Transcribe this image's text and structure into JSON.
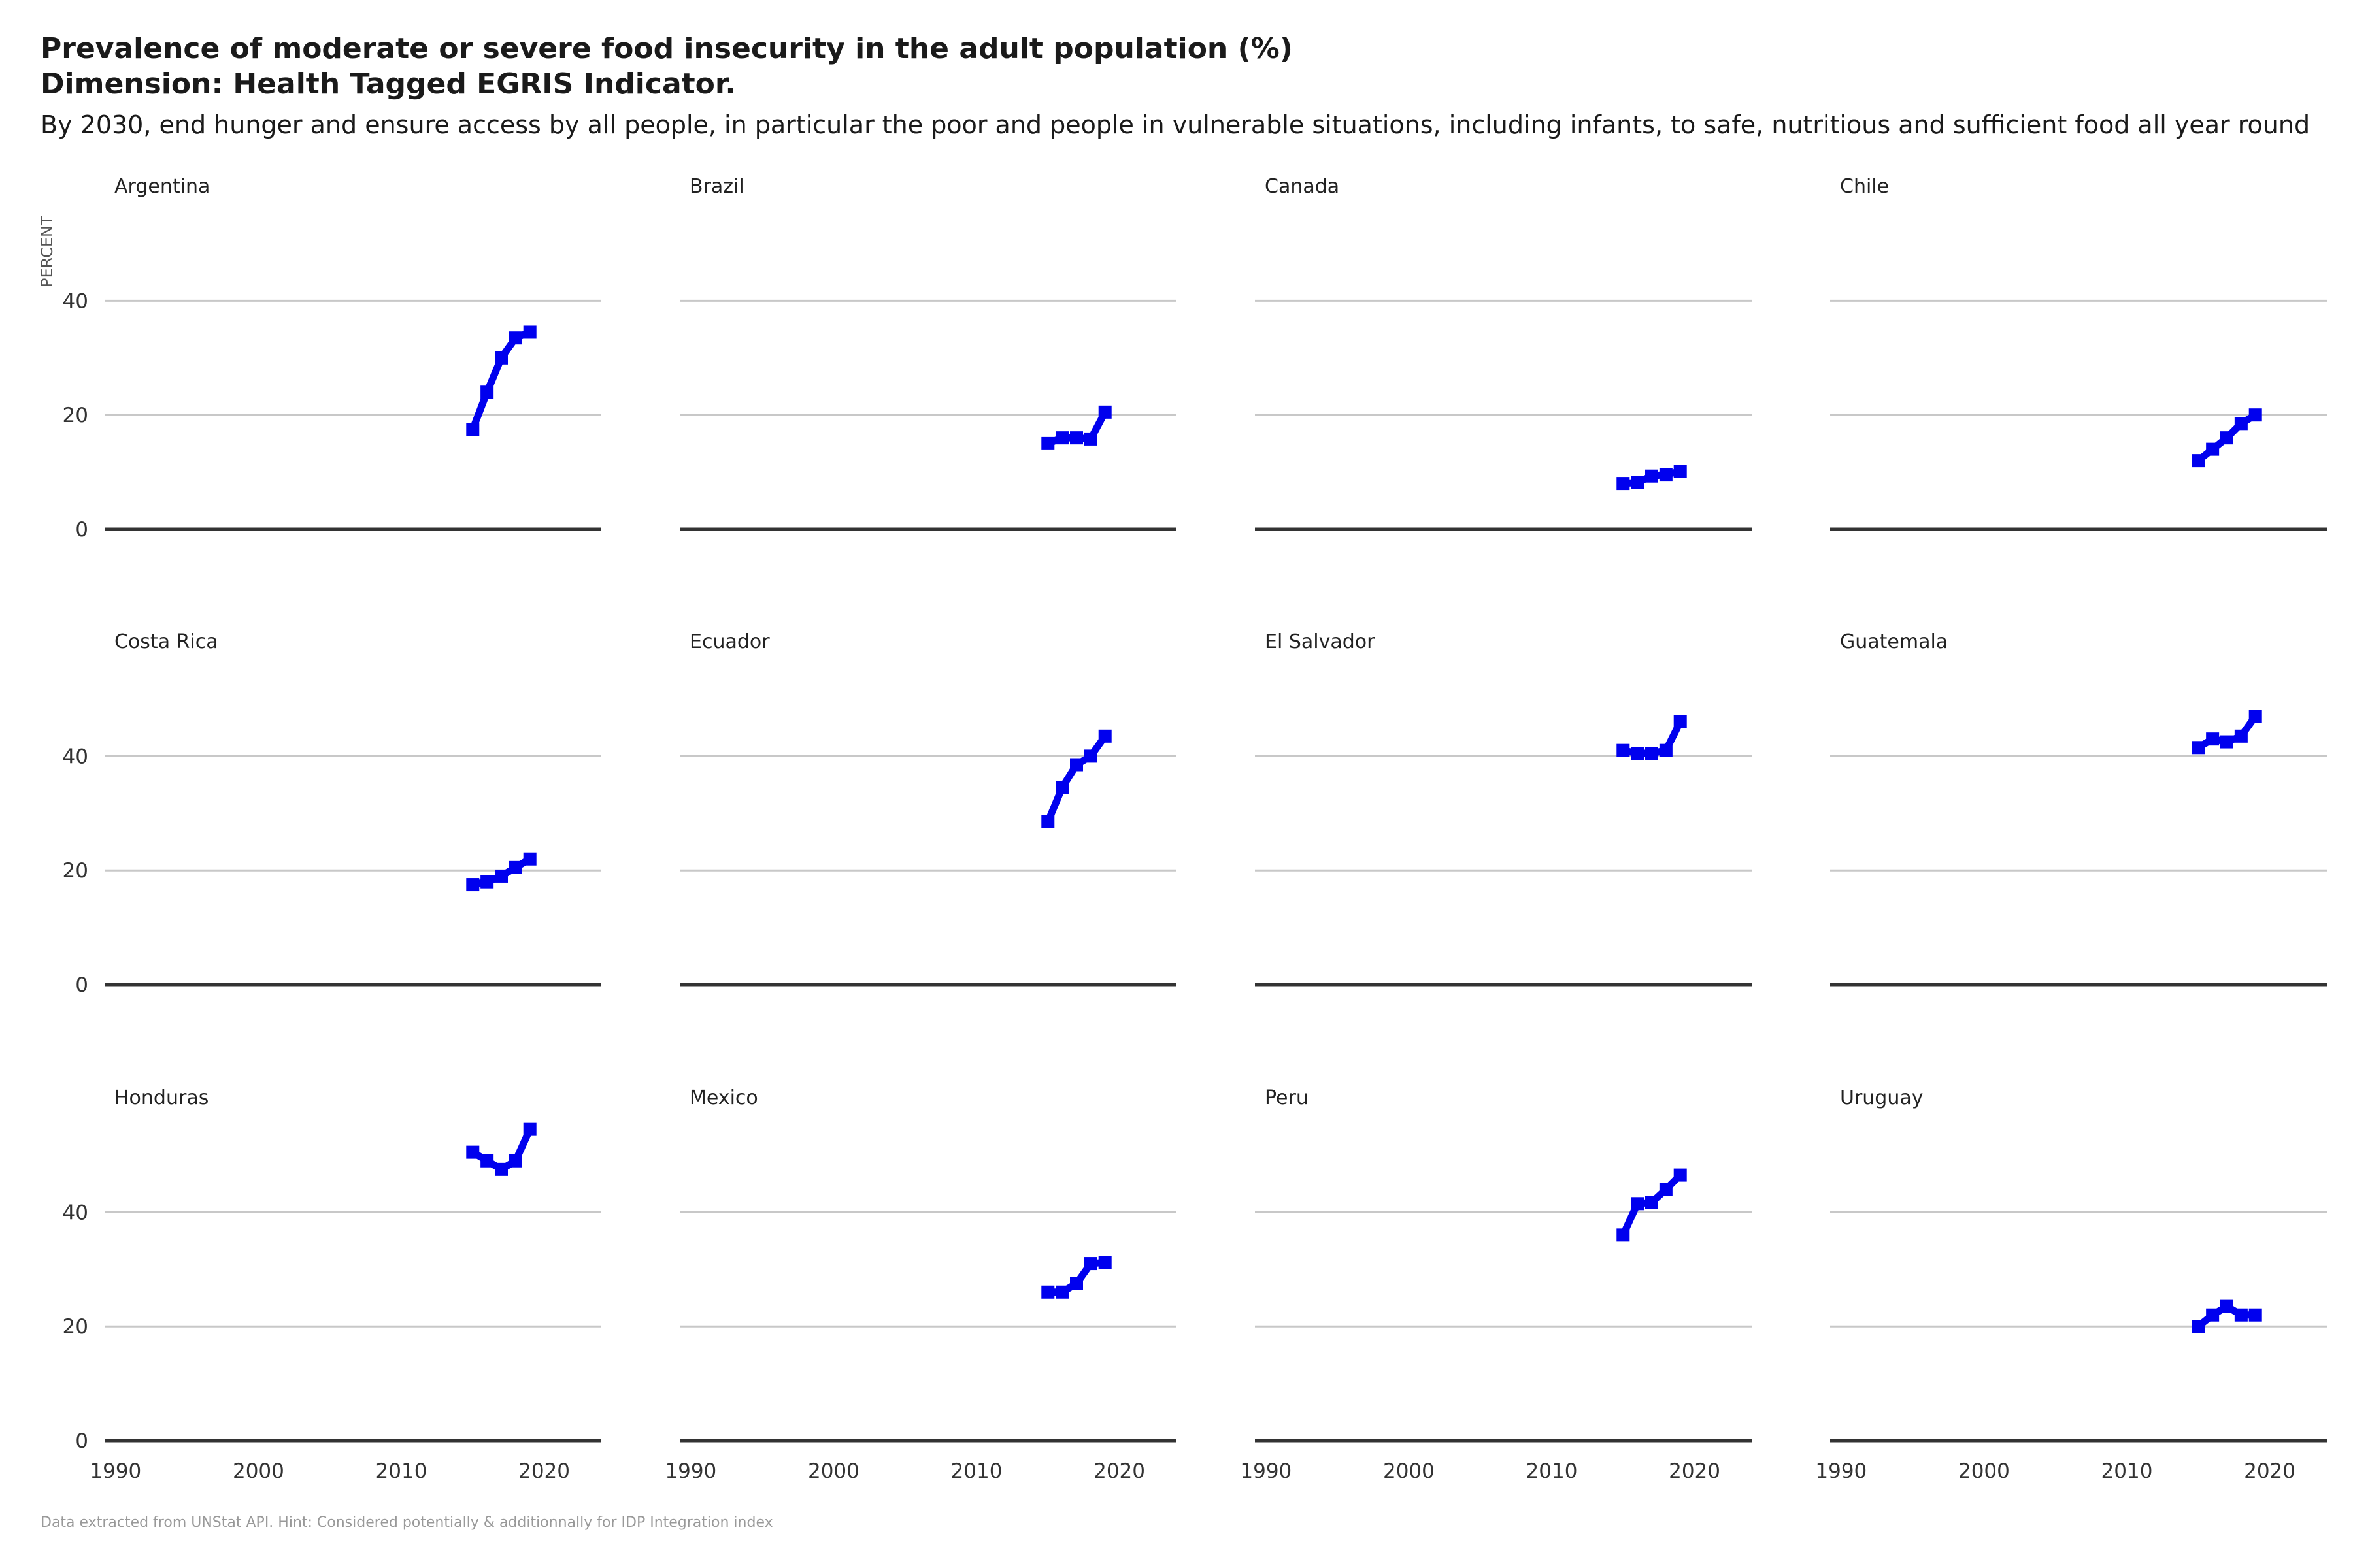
{
  "title_line1": "Prevalence of moderate or severe food insecurity in the adult population (%)",
  "title_line2": "Dimension: Health Tagged EGRIS Indicator.",
  "subtitle": "By 2030, end hunger and ensure access by all people, in particular the poor and people in vulnerable situations, including infants, to safe, nutritious and sufficient food all year round",
  "caption": "Data extracted from UNStat API. Hint: Considered potentially & additionnally for IDP Integration index",
  "colors": {
    "line": "#0000ee",
    "grid": "#c8c8c8",
    "baseline": "#333333"
  },
  "chart_data": {
    "type": "line",
    "facet": "small-multiples",
    "ylabel": "PERCENT",
    "x_ticks": [
      1990,
      2000,
      2010,
      2020
    ],
    "xlim": [
      1989,
      2024
    ],
    "ylim": [
      0,
      55
    ],
    "y_ticks": [
      0,
      20,
      40
    ],
    "grid": true,
    "x": [
      2015,
      2016,
      2017,
      2018,
      2019
    ],
    "panels": [
      {
        "name": "Argentina",
        "values": [
          17.5,
          24.0,
          30.0,
          33.5,
          34.5
        ]
      },
      {
        "name": "Brazil",
        "values": [
          15.0,
          16.0,
          16.0,
          15.8,
          20.5
        ]
      },
      {
        "name": "Canada",
        "values": [
          8.0,
          8.2,
          9.3,
          9.6,
          10.1
        ]
      },
      {
        "name": "Chile",
        "values": [
          12.0,
          14.0,
          16.0,
          18.5,
          20.0
        ]
      },
      {
        "name": "Costa Rica",
        "values": [
          17.5,
          18.0,
          19.0,
          20.5,
          22.0
        ]
      },
      {
        "name": "Ecuador",
        "values": [
          28.5,
          34.5,
          38.5,
          40.0,
          43.5
        ]
      },
      {
        "name": "El Salvador",
        "values": [
          41.0,
          40.5,
          40.5,
          41.0,
          46.0
        ]
      },
      {
        "name": "Guatemala",
        "values": [
          41.5,
          43.0,
          42.5,
          43.5,
          47.0
        ]
      },
      {
        "name": "Honduras",
        "values": [
          50.5,
          49.0,
          47.5,
          49.0,
          54.5
        ]
      },
      {
        "name": "Mexico",
        "values": [
          26.0,
          26.0,
          27.5,
          31.0,
          31.2
        ]
      },
      {
        "name": "Peru",
        "values": [
          36.0,
          41.5,
          41.7,
          44.0,
          46.5
        ]
      },
      {
        "name": "Uruguay",
        "values": [
          20.0,
          22.0,
          23.5,
          22.0,
          22.0
        ]
      }
    ]
  }
}
